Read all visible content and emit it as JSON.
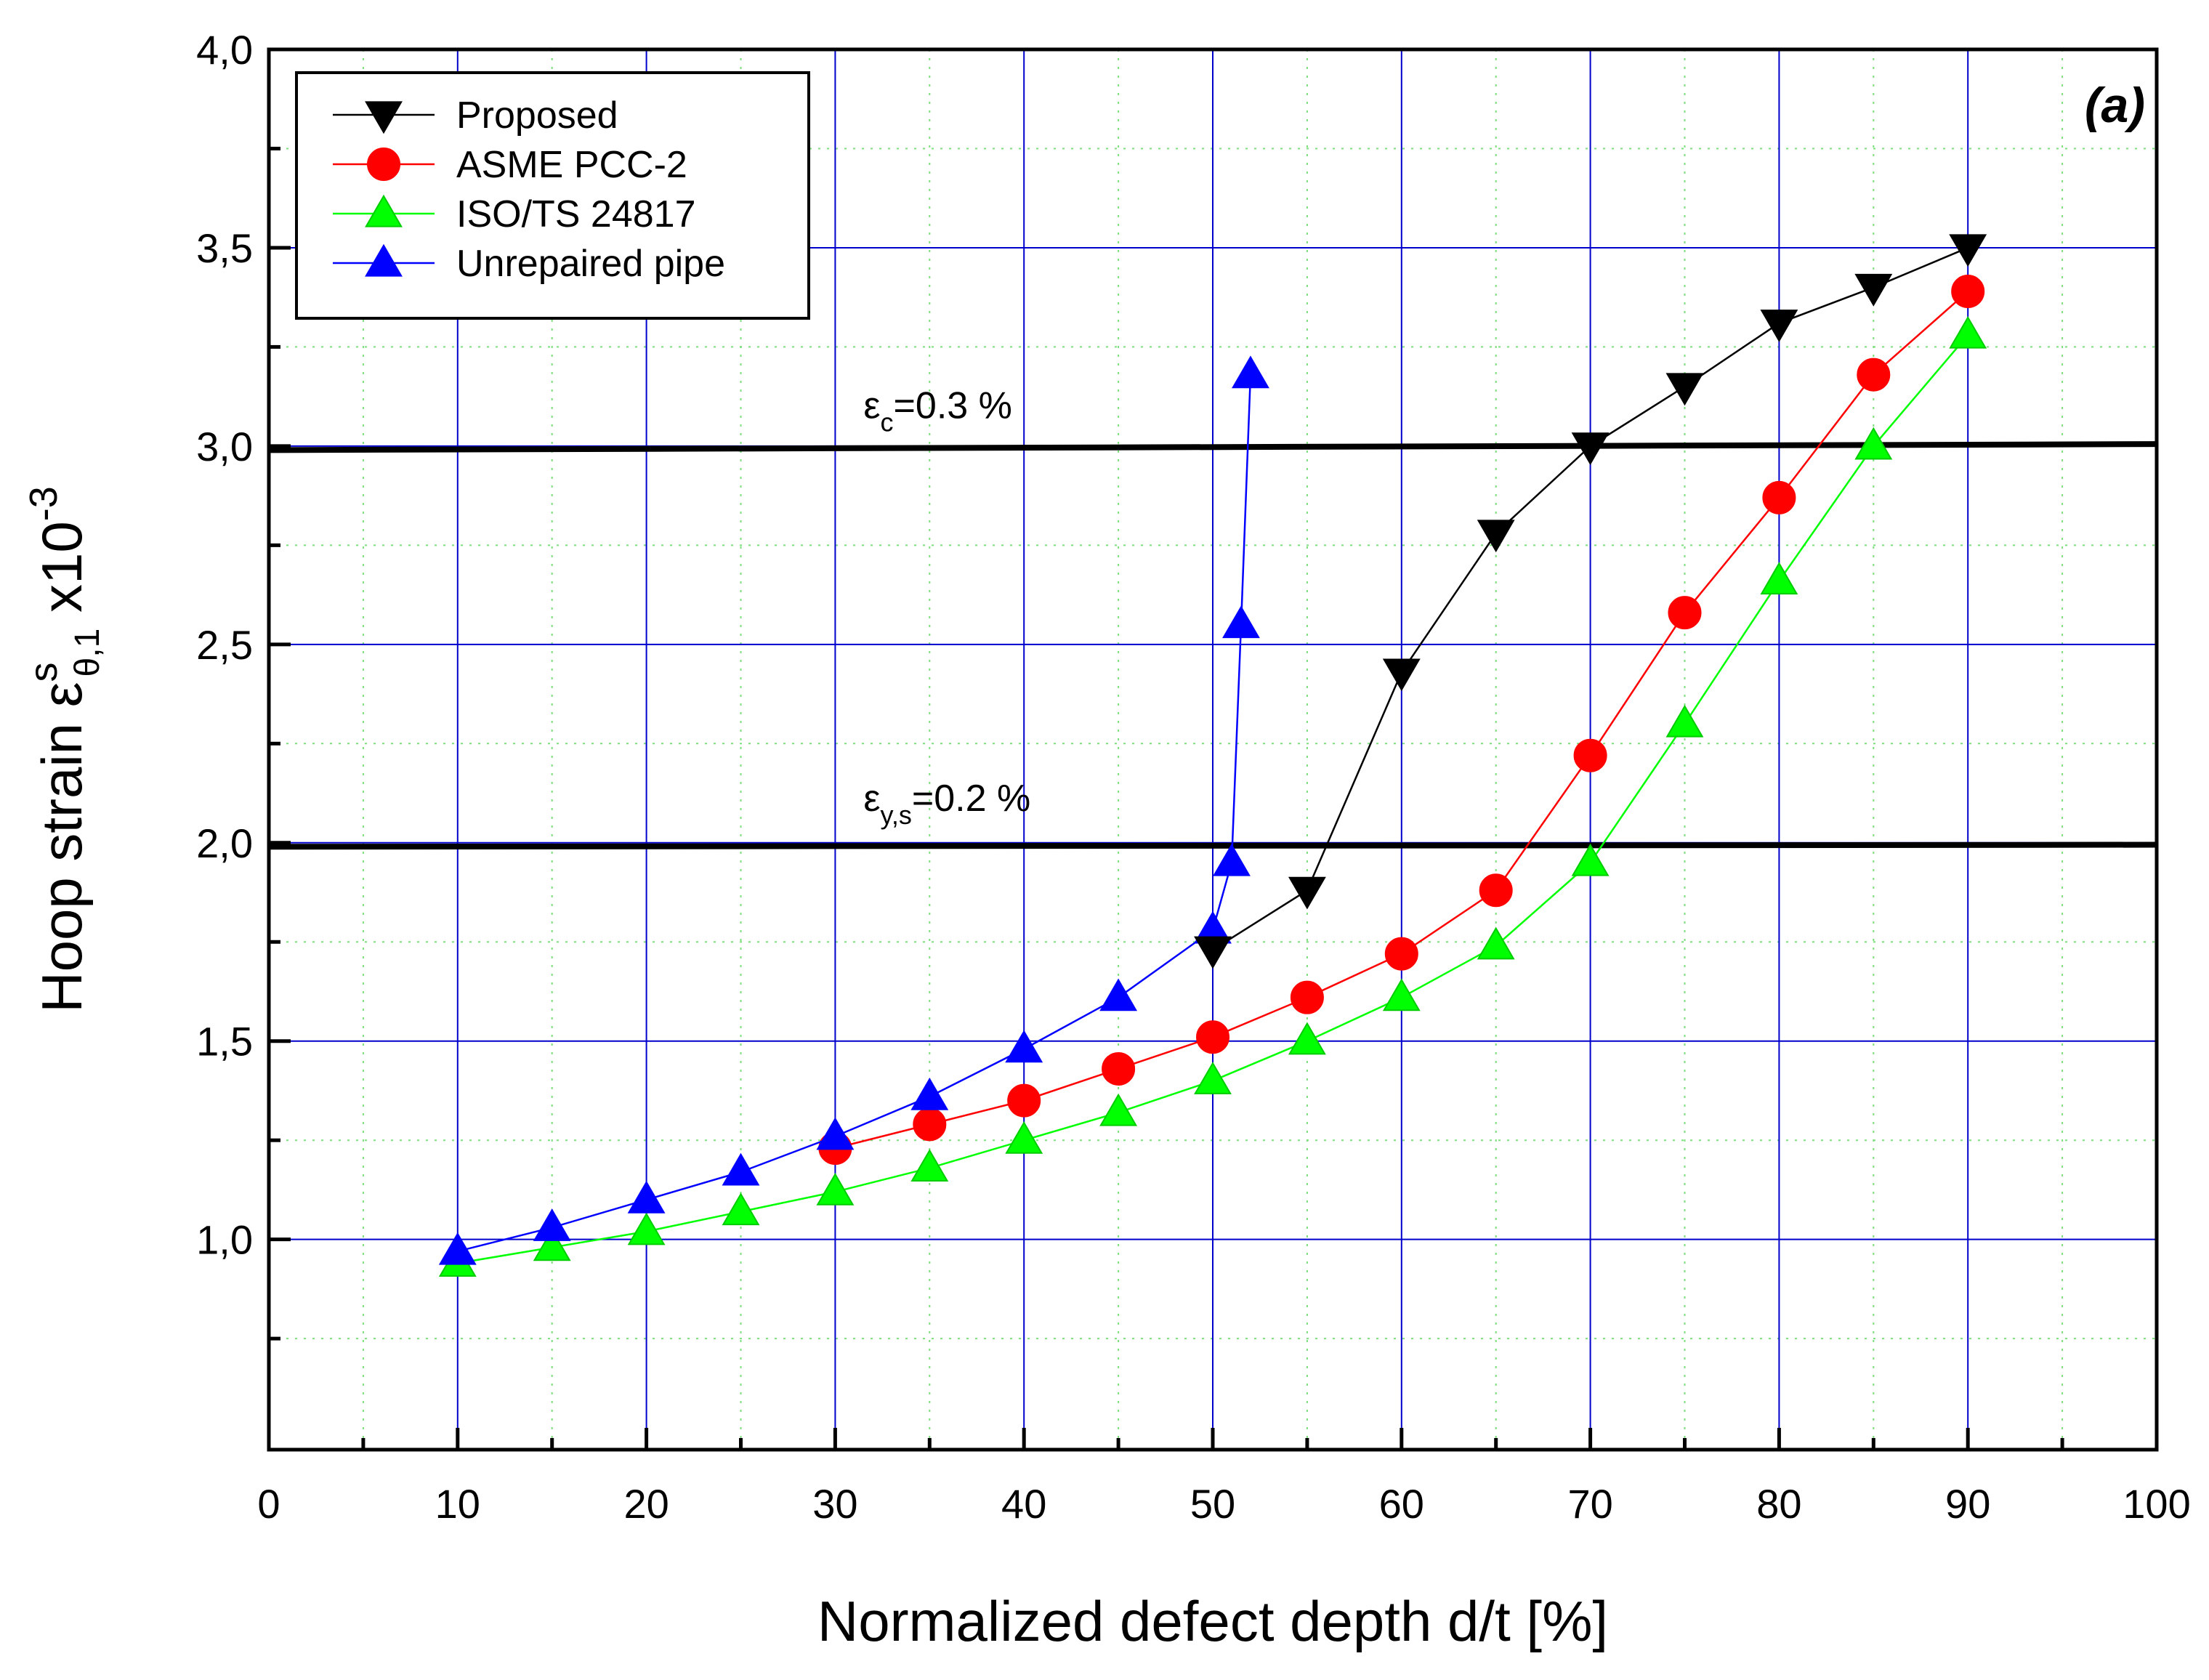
{
  "chart_data": {
    "type": "line",
    "panel_label": "(a)",
    "xlabel": "Normalized defect depth d/t [%]",
    "ylabel": {
      "main": "Hoop strain ε",
      "superscript": "s",
      "subscript": "θ,1",
      "suffix": " x10",
      "exponent": "-3"
    },
    "xlim": [
      0,
      100
    ],
    "ylim": [
      0.47,
      4.0
    ],
    "x_ticks": [
      0,
      10,
      20,
      30,
      40,
      50,
      60,
      70,
      80,
      90,
      100
    ],
    "x_tick_labels": [
      "0",
      "10",
      "20",
      "30",
      "40",
      "50",
      "60",
      "70",
      "80",
      "90",
      "100"
    ],
    "y_ticks": [
      1.0,
      1.5,
      2.0,
      2.5,
      3.0,
      3.5,
      4.0
    ],
    "y_tick_labels": [
      "1,0",
      "1,5",
      "2,0",
      "2,5",
      "3,0",
      "3,5",
      "4,0"
    ],
    "grid": true,
    "legend_position": "top-left",
    "series": [
      {
        "name": "Proposed",
        "color": "#000000",
        "marker": "triangle-down",
        "x": [
          50,
          55,
          60,
          65,
          70,
          75,
          80,
          85,
          90
        ],
        "y": [
          1.73,
          1.88,
          2.43,
          2.78,
          3.0,
          3.15,
          3.31,
          3.4,
          3.5
        ]
      },
      {
        "name": "ASME PCC-2",
        "color": "#ff0000",
        "marker": "circle",
        "x": [
          30,
          35,
          40,
          45,
          50,
          55,
          60,
          65,
          70,
          75,
          80,
          85,
          90
        ],
        "y": [
          1.23,
          1.29,
          1.35,
          1.43,
          1.51,
          1.61,
          1.72,
          1.88,
          2.22,
          2.58,
          2.87,
          3.18,
          3.39
        ]
      },
      {
        "name": "ISO/TS 24817",
        "color": "#00ff00",
        "marker": "triangle-up",
        "x": [
          10,
          15,
          20,
          25,
          30,
          35,
          40,
          45,
          50,
          55,
          60,
          65,
          70,
          75,
          80,
          85,
          90
        ],
        "y": [
          0.94,
          0.98,
          1.02,
          1.07,
          1.12,
          1.18,
          1.25,
          1.32,
          1.4,
          1.5,
          1.61,
          1.74,
          1.95,
          2.3,
          2.66,
          3.0,
          3.28
        ]
      },
      {
        "name": "Unrepaired pipe",
        "color": "#0000ff",
        "marker": "triangle-up",
        "x": [
          10,
          15,
          20,
          25,
          30,
          35,
          40,
          45,
          50,
          51,
          51.5,
          52
        ],
        "y": [
          0.97,
          1.03,
          1.1,
          1.17,
          1.26,
          1.36,
          1.48,
          1.61,
          1.78,
          1.95,
          2.55,
          3.18
        ]
      }
    ],
    "reference_lines": [
      {
        "label_main": "ε",
        "label_sub": "c",
        "label_rest": "=0.3 %",
        "y_start": 2.99,
        "y_end": 3.005,
        "label_x": 31.5,
        "label_y": 3.07
      },
      {
        "label_main": "ε",
        "label_sub": "y,s",
        "label_rest": "=0.2 %",
        "y_start": 1.99,
        "y_end": 1.995,
        "label_x": 31.5,
        "label_y": 2.08
      }
    ]
  }
}
